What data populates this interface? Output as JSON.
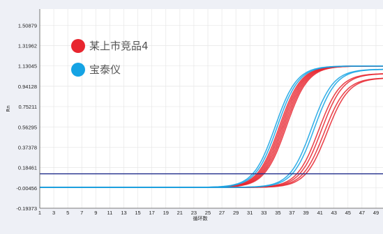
{
  "chart_data": {
    "type": "line",
    "ylabel": "Rn",
    "xlabel": "循环数",
    "x_ticks": [
      1,
      3,
      5,
      7,
      9,
      11,
      13,
      15,
      17,
      19,
      21,
      23,
      25,
      27,
      29,
      31,
      33,
      35,
      37,
      39,
      41,
      43,
      45,
      47,
      49
    ],
    "x_tick_labels": [
      "1",
      "3",
      "5",
      "7",
      "9",
      "11",
      "13",
      "15",
      "17",
      "19",
      "21",
      "23",
      "25",
      "27",
      "29",
      "31",
      "33",
      "35",
      "37",
      "39",
      "41",
      "43",
      "45",
      "47",
      "49"
    ],
    "y_ticks": [
      -0.19373,
      -0.00456,
      0.18461,
      0.37378,
      0.56295,
      0.75211,
      0.94128,
      1.13045,
      1.31962,
      1.50879
    ],
    "y_tick_labels": [
      "-0.19373",
      "-0.00456",
      "0.18461",
      "0.37378",
      "0.56295",
      "0.75211",
      "0.94128",
      "1.13045",
      "1.31962",
      "1.50879"
    ],
    "xlim": [
      1,
      50
    ],
    "ylim": [
      -0.19373,
      1.66
    ],
    "grid": true,
    "legend_position": "top-left",
    "threshold": 0.127,
    "threshold_color": "#1f2a8a",
    "baseline": 0.0,
    "series": [
      {
        "name": "某上市竞品4",
        "color": "#e8262f",
        "curves": [
          {
            "ct": 35.2,
            "plateau": 1.13
          },
          {
            "ct": 35.4,
            "plateau": 1.13
          },
          {
            "ct": 35.6,
            "plateau": 1.13
          },
          {
            "ct": 35.8,
            "plateau": 1.13
          },
          {
            "ct": 36.0,
            "plateau": 1.13
          },
          {
            "ct": 36.2,
            "plateau": 1.13
          },
          {
            "ct": 40.8,
            "plateau": 1.06
          },
          {
            "ct": 41.2,
            "plateau": 1.06
          },
          {
            "ct": 41.6,
            "plateau": 1.02
          },
          {
            "ct": 42.0,
            "plateau": 1.02
          }
        ]
      },
      {
        "name": "宝泰仪",
        "color": "#15a3e4",
        "curves": [
          {
            "ct": 34.6,
            "plateau": 1.13
          },
          {
            "ct": 34.9,
            "plateau": 1.13
          },
          {
            "ct": 39.8,
            "plateau": 1.1
          },
          {
            "ct": 40.2,
            "plateau": 1.1
          }
        ]
      }
    ]
  },
  "legend": [
    {
      "label": "某上市竞品4",
      "color": "#e8262f"
    },
    {
      "label": "宝泰仪",
      "color": "#15a3e4"
    }
  ]
}
